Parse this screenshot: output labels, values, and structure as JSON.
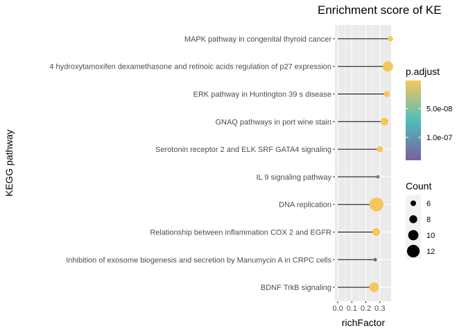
{
  "chart_data": {
    "type": "scatter",
    "title": "Enrichment score of KE",
    "xlabel": "richFactor",
    "ylabel": "KEGG pathway",
    "xlim": [
      -0.02,
      0.38
    ],
    "xticks": [
      0.0,
      0.1,
      0.2,
      0.3
    ],
    "xtick_labels": [
      "0.0",
      "0.1",
      "0.2",
      "0.3"
    ],
    "grid": true,
    "categories": [
      "MAPK pathway in congenital thyroid cancer",
      "4 hydroxytamoxifen dexamethasone and retinoic acids regulation of p27 expression",
      "ERK pathway in Huntington 39 s disease",
      "GNAQ pathways in port wine stain",
      "Serotonin receptor 2 and ELK SRF GATA4 signaling",
      "IL 9 signaling pathway",
      "DNA replication",
      "Relationship between inflammation COX 2 and EGFR",
      "Inhibition of exosome biogenesis and secretion by Manumycin A in CRPC cells",
      "BDNF TrkB signaling"
    ],
    "richFactor": [
      0.375,
      0.357,
      0.35,
      0.333,
      0.3,
      0.286,
      0.276,
      0.273,
      0.267,
      0.259
    ],
    "count": [
      6,
      12,
      7,
      9,
      7,
      4,
      16,
      9,
      4,
      11
    ],
    "p_adjust": [
      1e-09,
      1e-09,
      1e-09,
      1e-09,
      1e-09,
      1.2e-07,
      1e-09,
      1e-09,
      1.4e-07,
      1e-09
    ],
    "color_legend": {
      "title": "p.adjust",
      "ticks": [
        5e-08,
        1e-07
      ],
      "tick_labels": [
        "5.0e-08",
        "1.0e-07"
      ],
      "range": [
        1e-09,
        1.4e-07
      ],
      "colors": [
        "#f6c65b",
        "#4fbdbb",
        "#7a5fa0"
      ]
    },
    "size_legend": {
      "title": "Count",
      "values": [
        6,
        8,
        10,
        12
      ],
      "labels": [
        "6",
        "8",
        "10",
        "12"
      ]
    },
    "legend_position": "right"
  }
}
